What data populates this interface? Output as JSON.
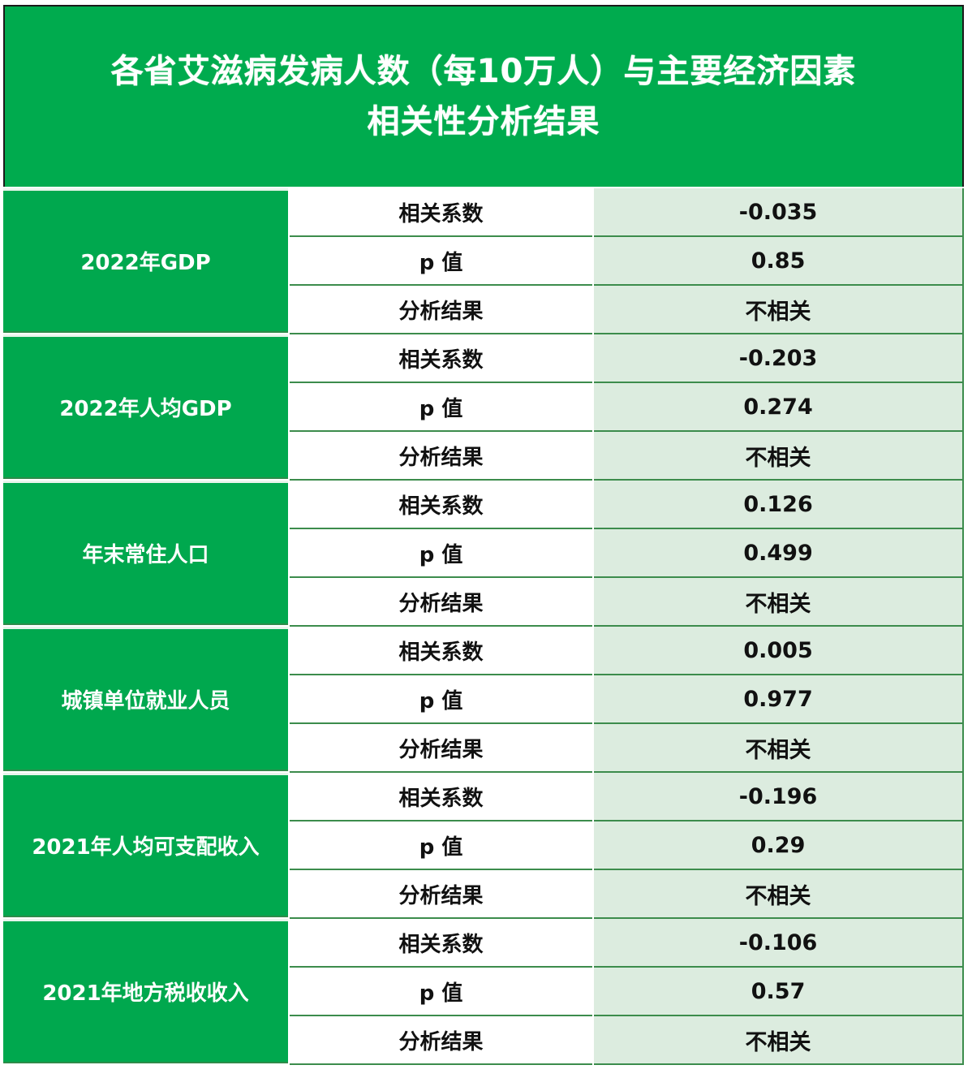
{
  "title": {
    "line1": "各省艾滋病发病人数（每10万人）与主要经济因素",
    "line2": "相关性分析结果"
  },
  "colors": {
    "header_green": "#00ab4e",
    "value_bg": "#dcecdf",
    "border_green": "#3c8c4c"
  },
  "row_labels": {
    "coef": "相关系数",
    "p": "p 值",
    "result": "分析结果"
  },
  "groups": [
    {
      "factor": "2022年GDP",
      "coef": "-0.035",
      "p": "0.85",
      "result": "不相关"
    },
    {
      "factor": "2022年人均GDP",
      "coef": "-0.203",
      "p": "0.274",
      "result": "不相关"
    },
    {
      "factor": "年末常住人口",
      "coef": "0.126",
      "p": "0.499",
      "result": "不相关"
    },
    {
      "factor": "城镇单位就业人员",
      "coef": "0.005",
      "p": "0.977",
      "result": "不相关"
    },
    {
      "factor": "2021年人均可支配收入",
      "coef": "-0.196",
      "p": "0.29",
      "result": "不相关"
    },
    {
      "factor": "2021年地方税收收入",
      "coef": "-0.106",
      "p": "0.57",
      "result": "不相关"
    }
  ]
}
